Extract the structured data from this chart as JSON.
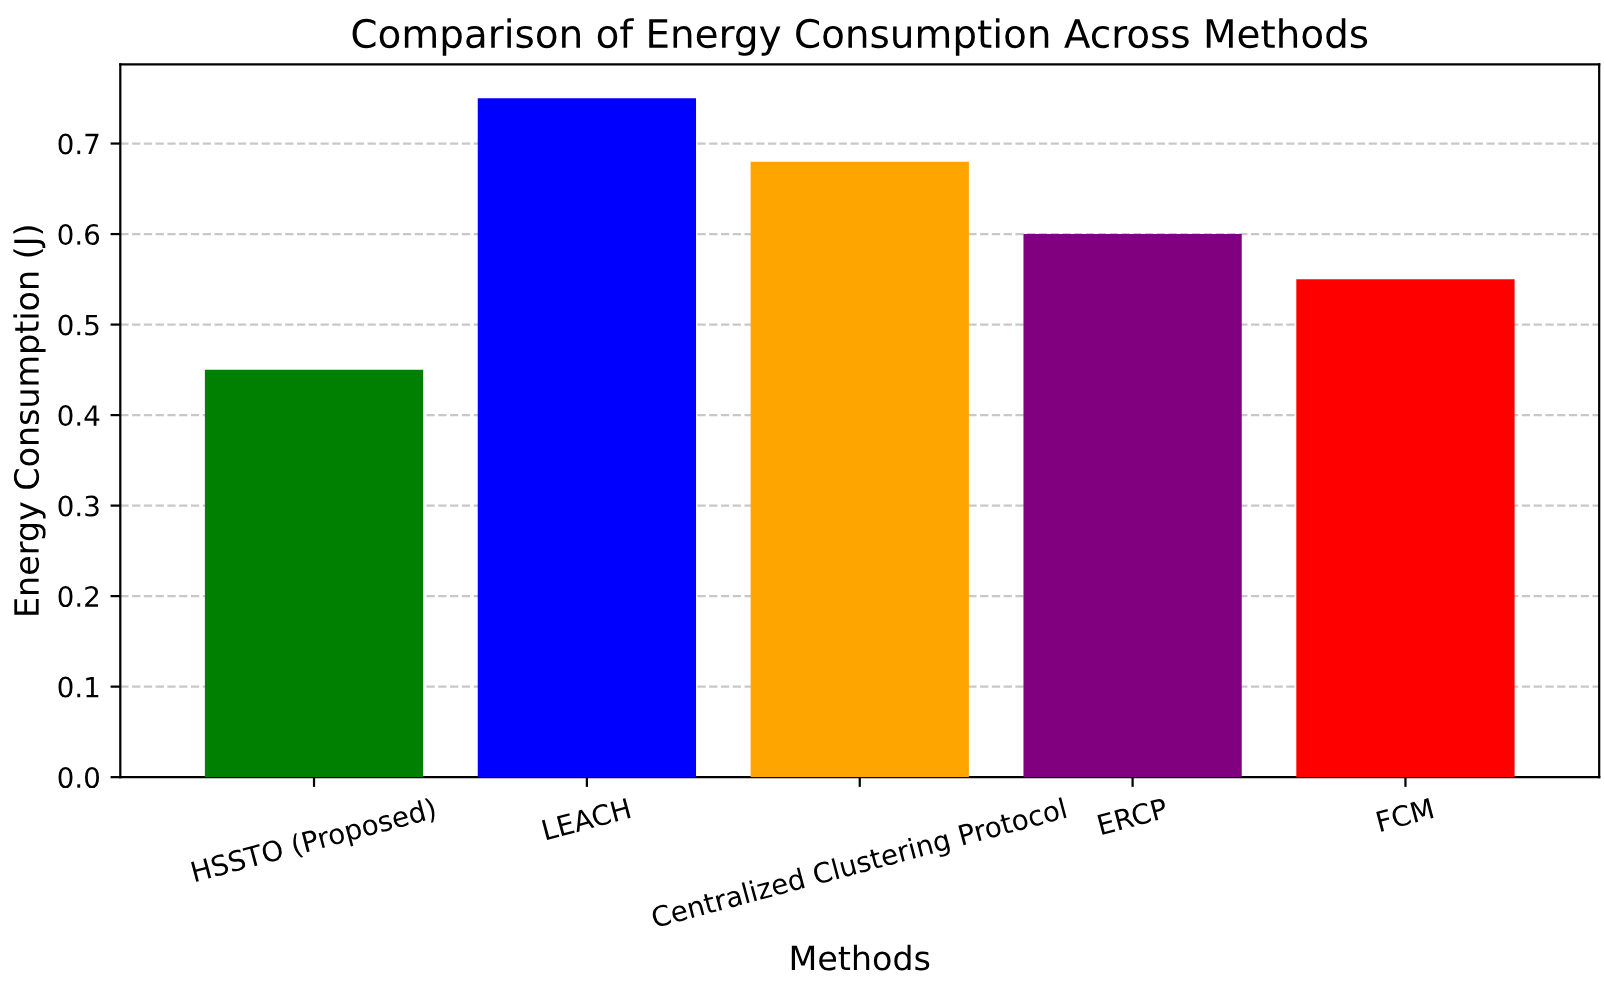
{
  "chart_data": {
    "type": "bar",
    "title": "Comparison of Energy Consumption Across Methods",
    "xlabel": "Methods",
    "ylabel": "Energy Consumption (J)",
    "categories": [
      "HSSTO (Proposed)",
      "LEACH",
      "Centralized Clustering Protocol",
      "ERCP",
      "FCM"
    ],
    "values": [
      0.45,
      0.75,
      0.68,
      0.6,
      0.55
    ],
    "colors": [
      "#008000",
      "#0000ff",
      "#ffa500",
      "#800080",
      "#ff0000"
    ],
    "ylim": [
      0,
      0.7875
    ],
    "yticks": [
      {
        "value": 0,
        "label": "0.0"
      },
      0.1,
      0.2,
      0.3,
      0.4,
      0.5,
      0.6,
      0.7
    ],
    "grid": "y",
    "line_style": "dashed"
  }
}
